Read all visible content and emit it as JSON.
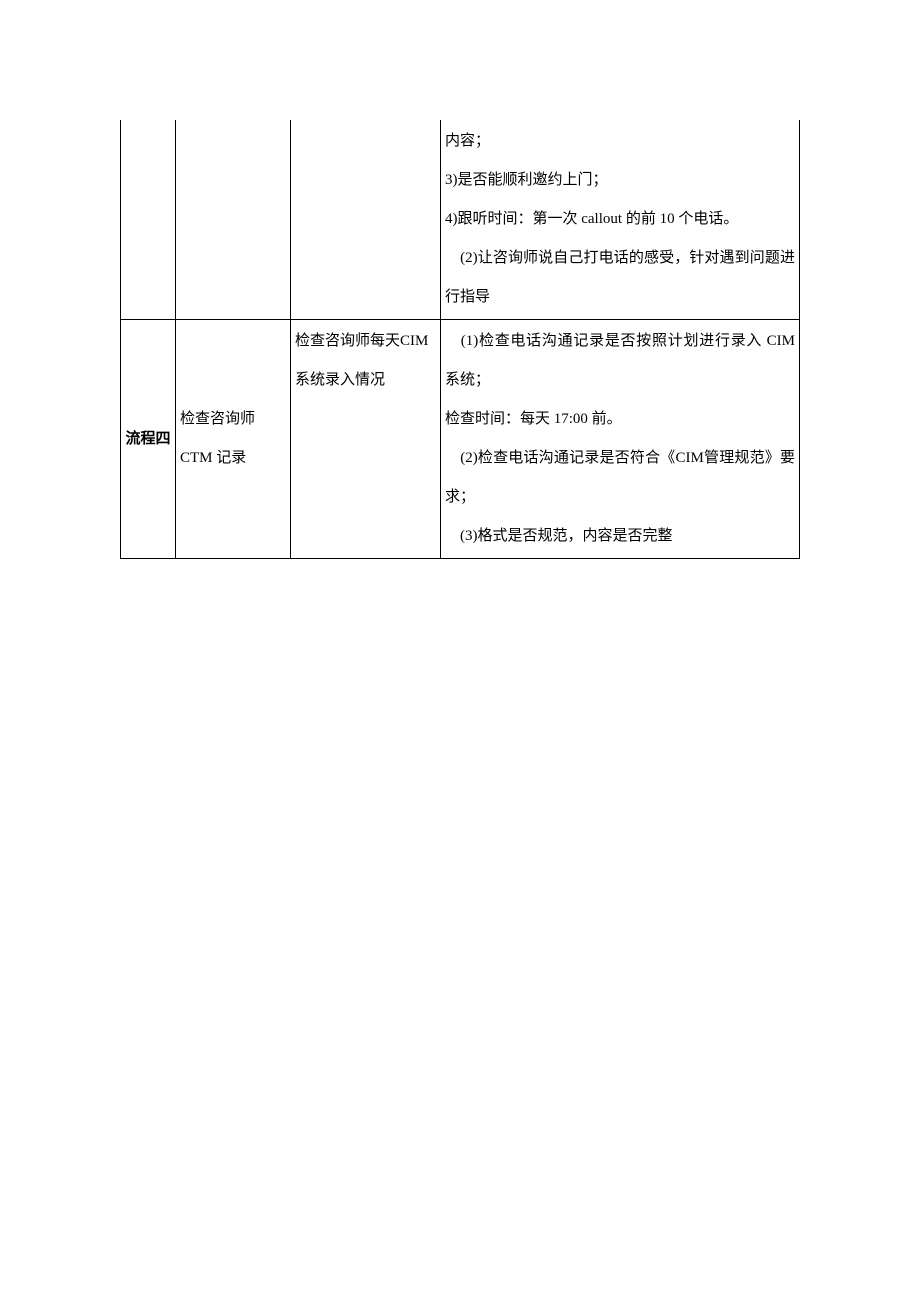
{
  "table": {
    "rows": [
      {
        "col1": "",
        "col2": "",
        "col3": "",
        "col4_lines": [
          "内容；",
          "3)是否能顺利邀约上门；",
          "4)跟听时间：第一次 callout 的前 10 个电话。",
          "　(2)让咨询师说自己打电话的感受，针对遇到问题进行指导"
        ]
      },
      {
        "col1": "流程四",
        "col2": "检查咨询师CTM 记录",
        "col3": "检查咨询师每天CIM 系统录入情况",
        "col4_lines": [
          "　(1)检查电话沟通记录是否按照计划进行录入 CIM 系统；",
          "检查时间：每天 17:00 前。",
          "　(2)检查电话沟通记录是否符合《CIM管理规范》要求；",
          "　(3)格式是否规范，内容是否完整"
        ]
      }
    ]
  }
}
